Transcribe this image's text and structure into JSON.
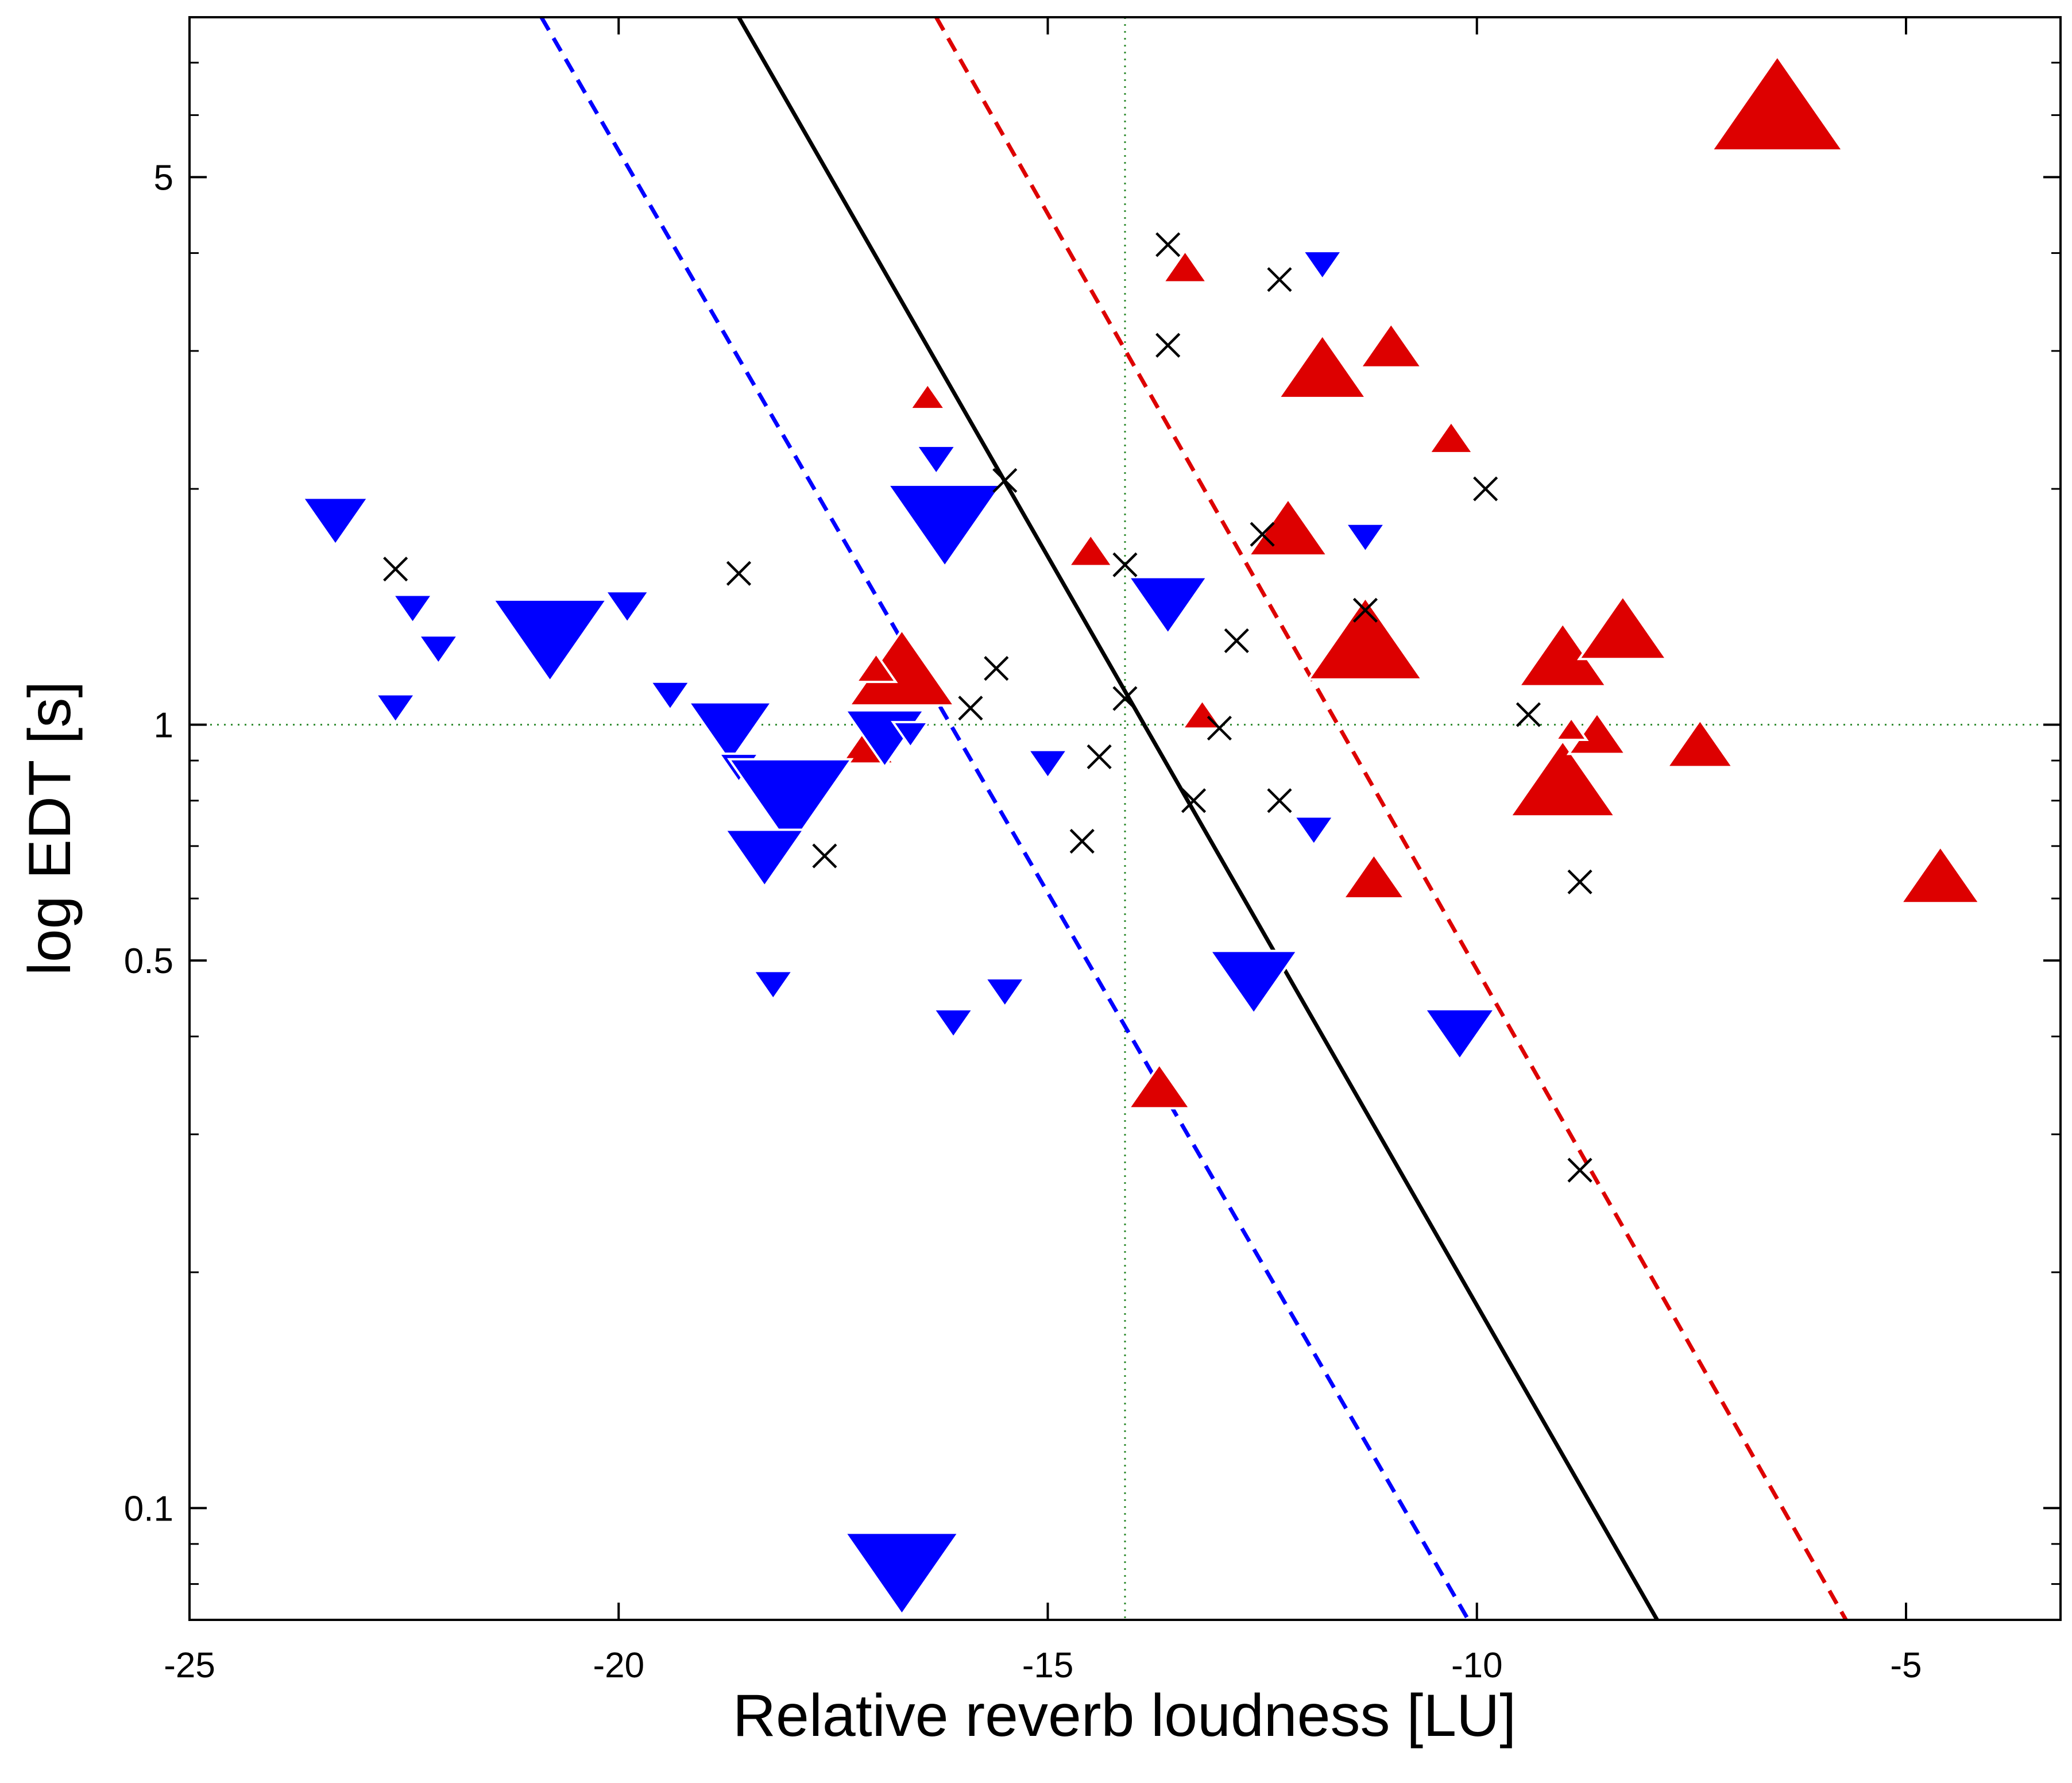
{
  "chart_data": {
    "type": "scatter",
    "xlabel": "Relative reverb loudness [LU]",
    "ylabel": "log EDT [s]",
    "xlim": [
      -25,
      -3.2
    ],
    "ylim": [
      0.072,
      8.0
    ],
    "yscale": "log",
    "x_ticks": [
      -25,
      -20,
      -15,
      -10,
      -5
    ],
    "x_tick_labels": [
      "-25",
      "-20",
      "-15",
      "-10",
      "-5"
    ],
    "y_ticks": [
      0.1,
      0.5,
      1,
      5
    ],
    "y_tick_labels": [
      "0.1",
      "0.5",
      "1",
      "5"
    ],
    "grid": false,
    "colors": {
      "red": "#dd0000",
      "blue": "#0000ff",
      "black": "#000000",
      "green": "#2e8b2e"
    },
    "reference_lines": {
      "x": -14.1,
      "y": 1.0
    },
    "regression_lines": [
      {
        "style": "solid",
        "color": "#000000",
        "points": [
          [
            -18.6,
            8.0
          ],
          [
            -7.9,
            0.072
          ]
        ]
      },
      {
        "style": "dashed",
        "color": "#dd0000",
        "points": [
          [
            -16.3,
            8.0
          ],
          [
            -5.7,
            0.072
          ]
        ]
      },
      {
        "style": "dashed",
        "color": "#0000ff",
        "points": [
          [
            -20.9,
            8.0
          ],
          [
            -10.1,
            0.072
          ]
        ]
      }
    ],
    "series": [
      {
        "marker": "triangle-up",
        "color": "#dd0000",
        "points": [
          {
            "x": -6.5,
            "y": 6.0,
            "s": 3.0
          },
          {
            "x": -13.4,
            "y": 3.8,
            "s": 1.0
          },
          {
            "x": -11.8,
            "y": 2.8,
            "s": 2.0
          },
          {
            "x": -11.0,
            "y": 3.0,
            "s": 1.4
          },
          {
            "x": -10.3,
            "y": 2.3,
            "s": 1.0
          },
          {
            "x": -16.4,
            "y": 2.6,
            "s": 0.8
          },
          {
            "x": -12.2,
            "y": 1.75,
            "s": 1.8
          },
          {
            "x": -14.5,
            "y": 1.65,
            "s": 1.0
          },
          {
            "x": -11.3,
            "y": 1.25,
            "s": 2.6
          },
          {
            "x": -9.0,
            "y": 1.2,
            "s": 2.0
          },
          {
            "x": -8.3,
            "y": 1.3,
            "s": 2.0
          },
          {
            "x": -16.7,
            "y": 1.15,
            "s": 2.4
          },
          {
            "x": -17.0,
            "y": 1.17,
            "s": 0.9
          },
          {
            "x": -13.2,
            "y": 1.02,
            "s": 0.9
          },
          {
            "x": -17.1,
            "y": 0.93,
            "s": 1.2
          },
          {
            "x": -9.0,
            "y": 0.83,
            "s": 2.4
          },
          {
            "x": -8.6,
            "y": 0.96,
            "s": 1.3
          },
          {
            "x": -7.4,
            "y": 0.93,
            "s": 1.5
          },
          {
            "x": -8.9,
            "y": 0.98,
            "s": 0.7
          },
          {
            "x": -11.2,
            "y": 0.63,
            "s": 1.4
          },
          {
            "x": -4.6,
            "y": 0.63,
            "s": 1.8
          },
          {
            "x": -13.7,
            "y": 0.34,
            "s": 1.4
          }
        ]
      },
      {
        "marker": "triangle-down",
        "color": "#0000ff",
        "points": [
          {
            "x": -11.8,
            "y": 3.9,
            "s": 0.9
          },
          {
            "x": -16.3,
            "y": 2.2,
            "s": 0.9
          },
          {
            "x": -16.2,
            "y": 1.85,
            "s": 2.6
          },
          {
            "x": -23.3,
            "y": 1.85,
            "s": 1.5
          },
          {
            "x": -11.3,
            "y": 1.75,
            "s": 0.9
          },
          {
            "x": -13.6,
            "y": 1.45,
            "s": 1.8
          },
          {
            "x": -22.4,
            "y": 1.42,
            "s": 0.9
          },
          {
            "x": -22.1,
            "y": 1.26,
            "s": 0.9
          },
          {
            "x": -20.8,
            "y": 1.32,
            "s": 2.6
          },
          {
            "x": -19.9,
            "y": 1.43,
            "s": 1.0
          },
          {
            "x": -19.4,
            "y": 1.1,
            "s": 0.9
          },
          {
            "x": -22.6,
            "y": 1.06,
            "s": 0.9
          },
          {
            "x": -18.7,
            "y": 1.0,
            "s": 1.9
          },
          {
            "x": -16.9,
            "y": 0.98,
            "s": 1.8
          },
          {
            "x": -16.6,
            "y": 0.98,
            "s": 0.8
          },
          {
            "x": -18.6,
            "y": 0.89,
            "s": 0.9
          },
          {
            "x": -18.0,
            "y": 0.82,
            "s": 2.8
          },
          {
            "x": -18.3,
            "y": 0.69,
            "s": 1.8
          },
          {
            "x": -15.0,
            "y": 0.9,
            "s": 0.9
          },
          {
            "x": -11.9,
            "y": 0.74,
            "s": 0.9
          },
          {
            "x": -12.6,
            "y": 0.48,
            "s": 2.0
          },
          {
            "x": -18.2,
            "y": 0.47,
            "s": 0.9
          },
          {
            "x": -15.5,
            "y": 0.46,
            "s": 0.9
          },
          {
            "x": -16.1,
            "y": 0.42,
            "s": 0.9
          },
          {
            "x": -10.2,
            "y": 0.41,
            "s": 1.6
          },
          {
            "x": -16.7,
            "y": 0.085,
            "s": 2.6
          }
        ]
      },
      {
        "marker": "x",
        "color": "#000000",
        "points": [
          {
            "x": -13.6,
            "y": 4.1
          },
          {
            "x": -12.3,
            "y": 3.7
          },
          {
            "x": -13.6,
            "y": 3.05
          },
          {
            "x": -15.5,
            "y": 2.05
          },
          {
            "x": -9.9,
            "y": 2.0
          },
          {
            "x": -12.5,
            "y": 1.75
          },
          {
            "x": -14.1,
            "y": 1.6
          },
          {
            "x": -22.6,
            "y": 1.58
          },
          {
            "x": -18.6,
            "y": 1.56
          },
          {
            "x": -11.3,
            "y": 1.4
          },
          {
            "x": -12.8,
            "y": 1.28
          },
          {
            "x": -15.6,
            "y": 1.18
          },
          {
            "x": -14.1,
            "y": 1.08
          },
          {
            "x": -15.9,
            "y": 1.05
          },
          {
            "x": -9.4,
            "y": 1.03
          },
          {
            "x": -13.0,
            "y": 0.99
          },
          {
            "x": -14.4,
            "y": 0.91
          },
          {
            "x": -13.3,
            "y": 0.8
          },
          {
            "x": -12.3,
            "y": 0.8
          },
          {
            "x": -14.6,
            "y": 0.71
          },
          {
            "x": -17.6,
            "y": 0.68
          },
          {
            "x": -8.8,
            "y": 0.63
          },
          {
            "x": -8.8,
            "y": 0.27
          }
        ]
      }
    ]
  }
}
